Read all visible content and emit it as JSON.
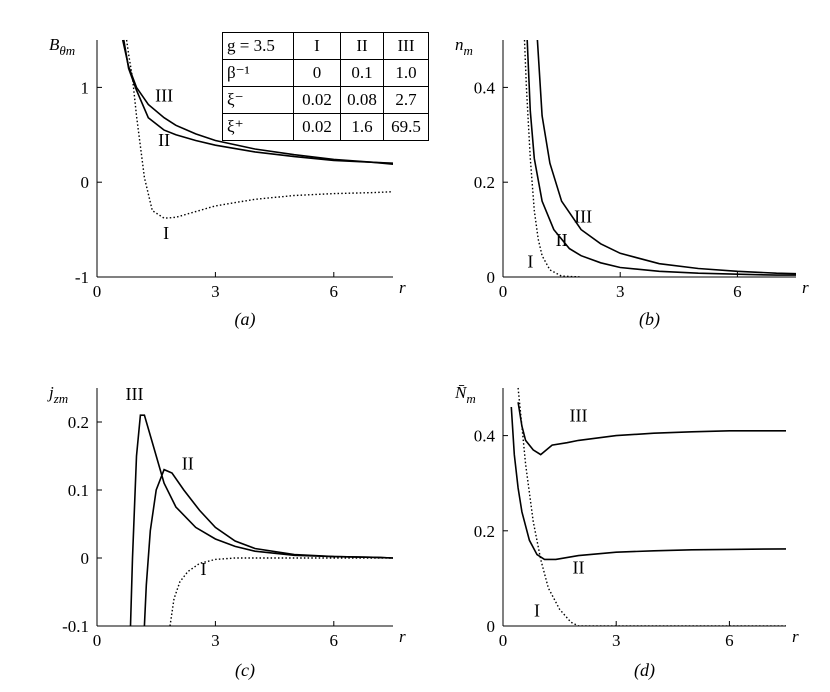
{
  "table": {
    "rows": [
      [
        "g = 3.5",
        "I",
        "II",
        "III"
      ],
      [
        "β⁻¹",
        "0",
        "0.1",
        "1.0"
      ],
      [
        "ξ⁻",
        "0.02",
        "0.08",
        "2.7"
      ],
      [
        "ξ⁺",
        "0.02",
        "1.6",
        "69.5"
      ]
    ]
  },
  "chart_data": [
    {
      "type": "line",
      "panel_label": "(a)",
      "ylabel": "B_θm",
      "xlabel": "r",
      "xlim": [
        0,
        7.5
      ],
      "ylim": [
        -1,
        1.5
      ],
      "xticks": [
        "0",
        "3",
        "6"
      ],
      "yticks": [
        "-1",
        "0",
        "1"
      ],
      "series": [
        {
          "name": "I",
          "style": "dotted",
          "x": [
            0.75,
            0.8,
            0.9,
            1.0,
            1.2,
            1.4,
            1.7,
            2.0,
            2.5,
            3.0,
            4.0,
            5.0,
            6.0,
            7.0,
            7.5
          ],
          "y": [
            1.5,
            1.35,
            1.1,
            0.7,
            0.05,
            -0.3,
            -0.38,
            -0.37,
            -0.31,
            -0.25,
            -0.18,
            -0.14,
            -0.12,
            -0.11,
            -0.1
          ]
        },
        {
          "name": "II",
          "style": "solid",
          "x": [
            0.68,
            0.8,
            1.0,
            1.3,
            1.7,
            2.0,
            2.5,
            3.0,
            4.0,
            5.0,
            6.0,
            7.0,
            7.5
          ],
          "y": [
            1.5,
            1.2,
            0.97,
            0.68,
            0.55,
            0.5,
            0.44,
            0.39,
            0.32,
            0.27,
            0.23,
            0.21,
            0.19
          ]
        },
        {
          "name": "III",
          "style": "solid",
          "x": [
            0.65,
            0.8,
            1.0,
            1.3,
            1.7,
            2.0,
            2.5,
            3.0,
            4.0,
            5.0,
            6.0,
            7.0,
            7.5
          ],
          "y": [
            1.5,
            1.22,
            1.0,
            0.82,
            0.68,
            0.6,
            0.51,
            0.44,
            0.35,
            0.29,
            0.24,
            0.21,
            0.2
          ]
        }
      ],
      "annotations": [
        {
          "text": "III",
          "x": 1.7,
          "y": 0.85
        },
        {
          "text": "II",
          "x": 1.7,
          "y": 0.38
        },
        {
          "text": "I",
          "x": 1.75,
          "y": -0.6
        }
      ]
    },
    {
      "type": "line",
      "panel_label": "(b)",
      "ylabel": "n_m",
      "xlabel": "r",
      "xlim": [
        0,
        7.5
      ],
      "ylim": [
        0,
        0.5
      ],
      "xticks": [
        "0",
        "3",
        "6"
      ],
      "yticks": [
        "0",
        "0.2",
        "0.4"
      ],
      "series": [
        {
          "name": "I",
          "style": "dotted",
          "x": [
            0.55,
            0.6,
            0.7,
            0.8,
            0.9,
            1.0,
            1.2,
            1.5,
            2.0
          ],
          "y": [
            0.5,
            0.4,
            0.25,
            0.14,
            0.08,
            0.045,
            0.015,
            0.002,
            0.0
          ]
        },
        {
          "name": "II",
          "style": "solid",
          "x": [
            0.62,
            0.7,
            0.8,
            1.0,
            1.3,
            1.7,
            2.0,
            2.5,
            3.0,
            4.0,
            5.0,
            6.0,
            7.0,
            7.5
          ],
          "y": [
            0.5,
            0.35,
            0.25,
            0.16,
            0.1,
            0.06,
            0.045,
            0.03,
            0.02,
            0.012,
            0.008,
            0.006,
            0.004,
            0.004
          ]
        },
        {
          "name": "III",
          "style": "solid",
          "x": [
            0.88,
            1.0,
            1.2,
            1.5,
            2.0,
            2.5,
            3.0,
            4.0,
            5.0,
            6.0,
            7.0,
            7.5
          ],
          "y": [
            0.5,
            0.34,
            0.24,
            0.16,
            0.1,
            0.07,
            0.05,
            0.028,
            0.018,
            0.012,
            0.008,
            0.007
          ]
        }
      ],
      "annotations": [
        {
          "text": "III",
          "x": 2.05,
          "y": 0.115
        },
        {
          "text": "II",
          "x": 1.5,
          "y": 0.065
        },
        {
          "text": "I",
          "x": 0.7,
          "y": 0.02
        }
      ]
    },
    {
      "type": "line",
      "panel_label": "(c)",
      "ylabel": "j_zm",
      "xlabel": "r",
      "xlim": [
        0,
        7.5
      ],
      "ylim": [
        -0.1,
        0.25
      ],
      "xticks": [
        "0",
        "3",
        "6"
      ],
      "yticks": [
        "-0.1",
        "0",
        "0.1",
        "0.2"
      ],
      "series": [
        {
          "name": "I",
          "style": "dotted",
          "x": [
            1.85,
            1.95,
            2.1,
            2.3,
            2.6,
            3.0,
            3.5,
            4.0,
            5.0,
            6.0,
            7.5
          ],
          "y": [
            -0.1,
            -0.06,
            -0.035,
            -0.02,
            -0.008,
            -0.002,
            0.0,
            0.0,
            0.0,
            0.0,
            0.0
          ]
        },
        {
          "name": "II",
          "style": "solid",
          "x": [
            1.2,
            1.25,
            1.35,
            1.5,
            1.7,
            1.9,
            2.2,
            2.6,
            3.0,
            3.5,
            4.0,
            5.0,
            6.0,
            7.0,
            7.5
          ],
          "y": [
            -0.1,
            -0.04,
            0.04,
            0.1,
            0.13,
            0.125,
            0.1,
            0.07,
            0.045,
            0.025,
            0.014,
            0.005,
            0.002,
            0.001,
            0.0
          ]
        },
        {
          "name": "III",
          "style": "solid",
          "x": [
            0.85,
            0.9,
            1.0,
            1.1,
            1.2,
            1.4,
            1.7,
            2.0,
            2.5,
            3.0,
            3.5,
            4.0,
            5.0,
            6.0,
            7.0,
            7.5
          ],
          "y": [
            -0.1,
            0.0,
            0.15,
            0.21,
            0.21,
            0.17,
            0.11,
            0.075,
            0.045,
            0.028,
            0.017,
            0.01,
            0.004,
            0.002,
            0.001,
            0.0
          ]
        }
      ],
      "annotations": [
        {
          "text": "III",
          "x": 0.95,
          "y": 0.232
        },
        {
          "text": "II",
          "x": 2.3,
          "y": 0.13
        },
        {
          "text": "I",
          "x": 2.7,
          "y": -0.025
        }
      ]
    },
    {
      "type": "line",
      "panel_label": "(d)",
      "ylabel": "N̄_m",
      "xlabel": "r",
      "xlim": [
        0,
        7.5
      ],
      "ylim": [
        0,
        0.5
      ],
      "xticks": [
        "0",
        "3",
        "6"
      ],
      "yticks": [
        "0",
        "0.2",
        "0.4"
      ],
      "series": [
        {
          "name": "I",
          "style": "dotted",
          "x": [
            0.4,
            0.5,
            0.6,
            0.8,
            1.0,
            1.2,
            1.5,
            1.8,
            2.0,
            3.0,
            5.0,
            7.5
          ],
          "y": [
            0.5,
            0.42,
            0.34,
            0.22,
            0.14,
            0.08,
            0.035,
            0.008,
            0.0,
            0.0,
            0.0,
            0.0
          ]
        },
        {
          "name": "II",
          "style": "solid",
          "x": [
            0.22,
            0.3,
            0.4,
            0.5,
            0.7,
            0.9,
            1.1,
            1.4,
            2.0,
            3.0,
            4.0,
            5.0,
            6.0,
            7.5
          ],
          "y": [
            0.46,
            0.36,
            0.29,
            0.24,
            0.18,
            0.15,
            0.14,
            0.14,
            0.148,
            0.155,
            0.158,
            0.16,
            0.161,
            0.162
          ]
        },
        {
          "name": "III",
          "style": "solid",
          "x": [
            0.4,
            0.5,
            0.6,
            0.8,
            1.0,
            1.3,
            1.7,
            2.0,
            3.0,
            4.0,
            5.0,
            6.0,
            7.5
          ],
          "y": [
            0.47,
            0.42,
            0.39,
            0.37,
            0.36,
            0.38,
            0.385,
            0.39,
            0.4,
            0.405,
            0.408,
            0.41,
            0.41
          ]
        }
      ],
      "annotations": [
        {
          "text": "III",
          "x": 2.0,
          "y": 0.43
        },
        {
          "text": "II",
          "x": 2.0,
          "y": 0.11
        },
        {
          "text": "I",
          "x": 0.9,
          "y": 0.02
        }
      ]
    }
  ]
}
